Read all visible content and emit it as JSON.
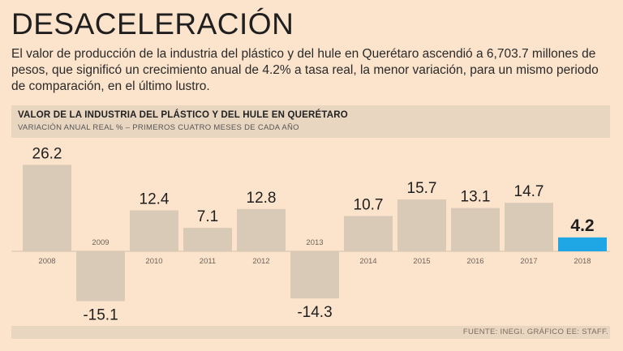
{
  "headline": "DESACELERACIÓN",
  "intro": "El valor de producción de la industria del plástico y del hule en Querétaro ascendió a 6,703.7 millones de pesos, que significó un crecimiento anual de 4.2% a tasa real, la menor variación, para un mismo periodo de comparación, en el último lustro.",
  "chart_data": {
    "type": "bar",
    "title": "VALOR DE LA INDUSTRIA DEL PLÁSTICO Y DEL HULE EN QUERÉTARO",
    "subtitle": "VARIACIÓN ANUAL REAL % – PRIMEROS CUATRO MESES DE CADA AÑO",
    "categories": [
      "2008",
      "2009",
      "2010",
      "2011",
      "2012",
      "2013",
      "2014",
      "2015",
      "2016",
      "2017",
      "2018"
    ],
    "values": [
      26.2,
      -15.1,
      12.4,
      7.1,
      12.8,
      -14.3,
      10.7,
      15.7,
      13.1,
      14.7,
      4.2
    ],
    "value_labels": [
      "26.2",
      "-15.1",
      "12.4",
      "7.1",
      "12.8",
      "-14.3",
      "10.7",
      "15.7",
      "13.1",
      "14.7",
      "4.2"
    ],
    "highlight_index": 10,
    "xlabel": "",
    "ylabel": "",
    "ylim": [
      -15.1,
      26.2
    ]
  },
  "colors": {
    "background": "#fbe3cc",
    "band": "#e9d6c1",
    "bar": "#d9c9b7",
    "highlight": "#1ea7e4",
    "text": "#1f1f1f"
  },
  "source": "FUENTE: INEGI. GRÁFICO EE: STAFF."
}
